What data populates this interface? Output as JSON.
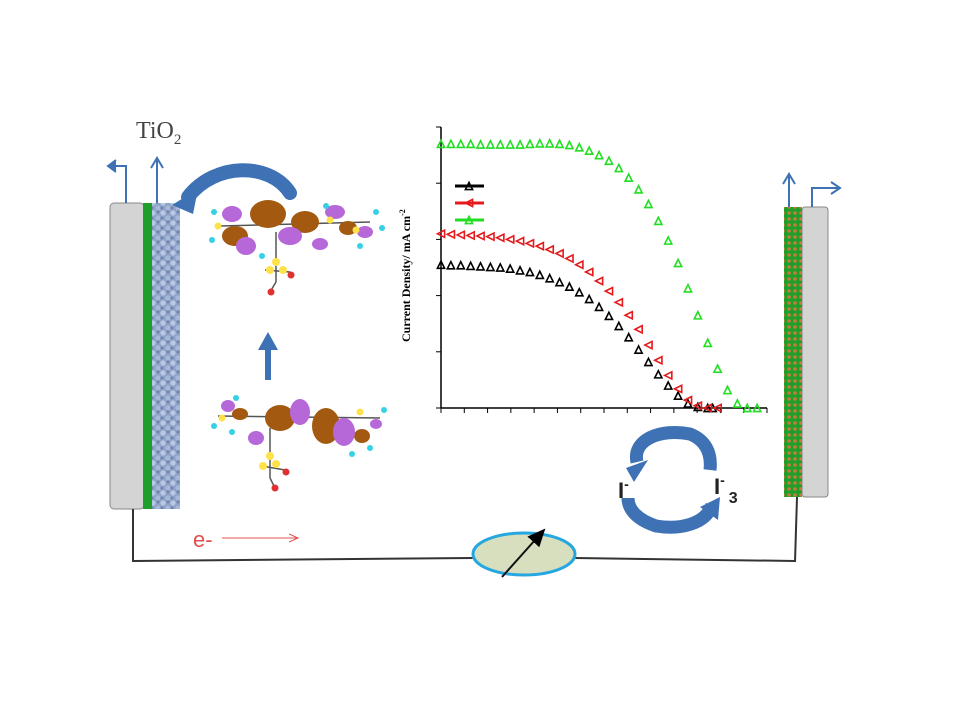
{
  "anode": {
    "label": "TiO",
    "label_sub": "2"
  },
  "electron": {
    "label": "e-"
  },
  "redox": {
    "iodide": "I",
    "iodide_sup": "-",
    "triiodide": "I",
    "triiodide_sup": "-",
    "triiodide_sub": "3"
  },
  "colors": {
    "glass": "#d4d4d4",
    "tco_green": "#1e9e2a",
    "tio2_blue": "#8fa3c8",
    "arrow_blue": "#3e72b5",
    "electron_red": "#e05050",
    "lobe_orange": "#a35a10",
    "lobe_purple": "#b667d8",
    "meter_fill": "#d8dfbe",
    "meter_stroke": "#26a7e0"
  },
  "chart_data": {
    "type": "line",
    "ylabel": "Current Density/ mA cm",
    "ylabel_sup": "-2",
    "series": [
      {
        "color": "#000000",
        "marker": "triangle-up",
        "x": [
          0.0,
          0.2,
          0.4,
          0.6,
          0.8,
          1.0,
          1.2,
          1.4,
          1.6,
          1.8,
          2.0,
          2.2,
          2.4,
          2.6,
          2.8,
          3.0,
          3.2,
          3.4,
          3.6,
          3.8,
          4.0,
          4.2,
          4.4,
          4.6,
          4.8,
          5.0,
          5.2,
          5.4,
          5.5
        ],
        "y": [
          2.55,
          2.54,
          2.54,
          2.53,
          2.52,
          2.51,
          2.5,
          2.48,
          2.45,
          2.42,
          2.37,
          2.31,
          2.24,
          2.16,
          2.06,
          1.94,
          1.8,
          1.64,
          1.46,
          1.26,
          1.04,
          0.82,
          0.6,
          0.4,
          0.22,
          0.08,
          0.02,
          0.0,
          0.0
        ]
      },
      {
        "color": "#e41a1c",
        "marker": "triangle-left",
        "x": [
          0.0,
          0.2,
          0.4,
          0.6,
          0.8,
          1.0,
          1.2,
          1.4,
          1.6,
          1.8,
          2.0,
          2.2,
          2.4,
          2.6,
          2.8,
          3.0,
          3.2,
          3.4,
          3.6,
          3.8,
          4.0,
          4.2,
          4.4,
          4.6,
          4.8,
          5.0,
          5.2,
          5.4,
          5.6
        ],
        "y": [
          3.1,
          3.09,
          3.08,
          3.07,
          3.06,
          3.05,
          3.03,
          3.0,
          2.97,
          2.93,
          2.88,
          2.82,
          2.75,
          2.66,
          2.55,
          2.42,
          2.26,
          2.08,
          1.88,
          1.65,
          1.4,
          1.12,
          0.85,
          0.58,
          0.34,
          0.14,
          0.04,
          0.0,
          0.0
        ]
      },
      {
        "color": "#22dd22",
        "marker": "triangle-up",
        "x": [
          0.0,
          0.2,
          0.4,
          0.6,
          0.8,
          1.0,
          1.2,
          1.4,
          1.6,
          1.8,
          2.0,
          2.2,
          2.4,
          2.6,
          2.8,
          3.0,
          3.2,
          3.4,
          3.6,
          3.8,
          4.0,
          4.2,
          4.4,
          4.6,
          4.8,
          5.0,
          5.2,
          5.4,
          5.6,
          5.8,
          6.0,
          6.2,
          6.4
        ],
        "y": [
          4.7,
          4.7,
          4.7,
          4.7,
          4.69,
          4.69,
          4.69,
          4.69,
          4.69,
          4.7,
          4.71,
          4.71,
          4.7,
          4.68,
          4.64,
          4.58,
          4.5,
          4.4,
          4.27,
          4.1,
          3.89,
          3.63,
          3.33,
          2.98,
          2.58,
          2.13,
          1.65,
          1.16,
          0.7,
          0.32,
          0.08,
          0.0,
          0.0
        ]
      }
    ],
    "xlim": [
      0,
      6.6
    ],
    "ylim": [
      0,
      5.0
    ],
    "legend": "top-left",
    "grid": false
  }
}
